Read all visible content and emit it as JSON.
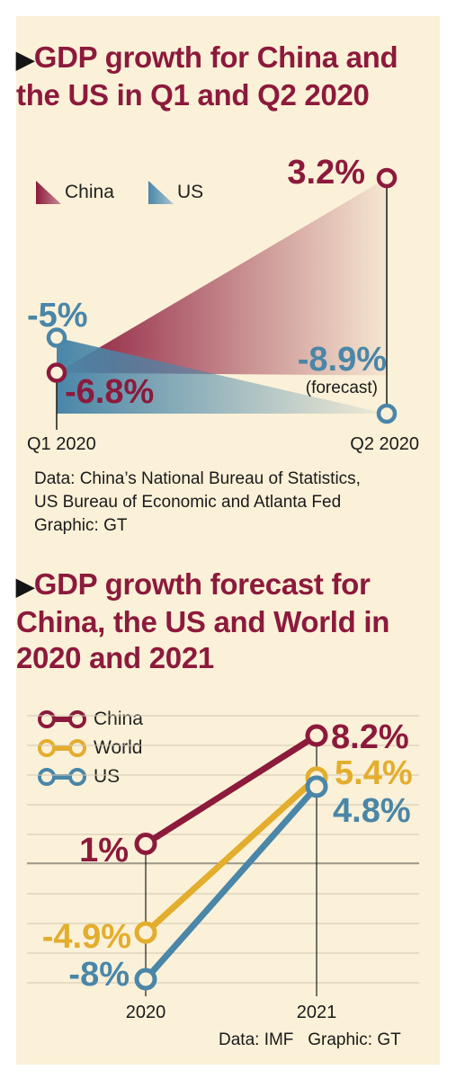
{
  "chart1": {
    "title": "GDP growth for China and the US in Q1 and Q2 2020",
    "legend": [
      {
        "name": "China",
        "color": "#8c1a3c"
      },
      {
        "name": "US",
        "color": "#4a86a8"
      }
    ],
    "source_lines": [
      "Data: China’s National Bureau of Statistics,",
      "US Bureau of Economic and Atlanta Fed",
      "Graphic: GT"
    ]
  },
  "chart2": {
    "title": "GDP growth forecast for China, the US and World in 2020 and 2021",
    "legend": [
      {
        "name": "China",
        "color": "#8c1a3c"
      },
      {
        "name": "World",
        "color": "#e3ad2d"
      },
      {
        "name": "US",
        "color": "#4a86a8"
      }
    ],
    "source": "Data: IMF   Graphic: GT"
  },
  "chart_data": [
    {
      "type": "area",
      "title": "GDP growth for China and the US in Q1 and Q2 2020",
      "categories": [
        "Q1 2020",
        "Q2 2020"
      ],
      "series": [
        {
          "name": "China",
          "values": [
            -6.8,
            3.2
          ],
          "labels": [
            "-6.8%",
            "3.2%"
          ],
          "color": "#8c1a3c"
        },
        {
          "name": "US",
          "values": [
            -5,
            -8.9
          ],
          "labels": [
            "-5%",
            "-8.9%"
          ],
          "color": "#4a86a8"
        }
      ],
      "annotations": [
        {
          "series": "US",
          "category": "Q2 2020",
          "text": "(forecast)"
        }
      ],
      "ylim": [
        -9,
        3.5
      ],
      "grid": false,
      "legend": "top-left"
    },
    {
      "type": "line",
      "title": "GDP growth forecast for China, the US and World in 2020 and 2021",
      "categories": [
        "2020",
        "2021"
      ],
      "series": [
        {
          "name": "China",
          "values": [
            1,
            8.2
          ],
          "labels": [
            "1%",
            "8.2%"
          ],
          "color": "#8c1a3c"
        },
        {
          "name": "World",
          "values": [
            -4.9,
            5.4
          ],
          "labels": [
            "-4.9%",
            "5.4%"
          ],
          "color": "#e3ad2d"
        },
        {
          "name": "US",
          "values": [
            -8,
            4.8
          ],
          "labels": [
            "-8%",
            "4.8%"
          ],
          "color": "#4a86a8"
        }
      ],
      "ylim": [
        -8.5,
        8.5
      ],
      "grid": true,
      "legend": "top-left"
    }
  ]
}
